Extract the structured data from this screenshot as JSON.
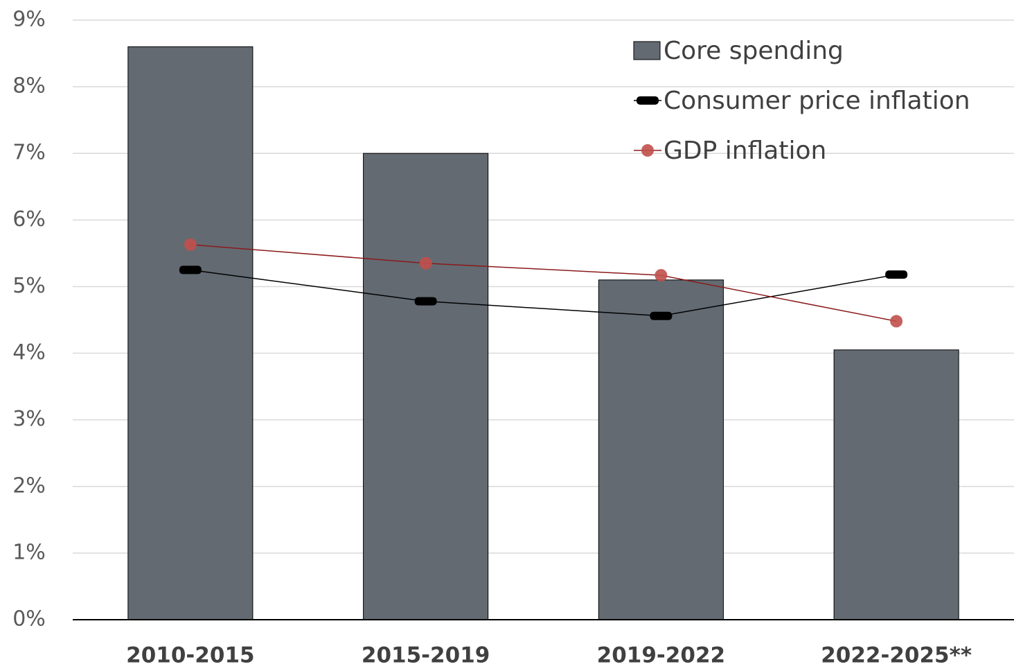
{
  "chart_data": {
    "type": "bar",
    "categories": [
      "2010-2015",
      "2015-2019",
      "2019-2022",
      "2022-2025**"
    ],
    "series": [
      {
        "name": "Core spending",
        "type": "bar",
        "color": "#636a72",
        "values": [
          8.6,
          7.0,
          5.1,
          4.05
        ]
      },
      {
        "name": "Consumer price inflation",
        "type": "line",
        "marker": "dash",
        "color": "#000000",
        "values": [
          5.25,
          4.78,
          4.56,
          5.18
        ]
      },
      {
        "name": "GDP inflation",
        "type": "line",
        "marker": "circle",
        "color": "#c0504d",
        "values": [
          5.63,
          5.35,
          5.17,
          4.48
        ]
      }
    ],
    "ylim": [
      0,
      9
    ],
    "yticks": [
      {
        "value": 0,
        "label": "0%"
      },
      {
        "value": 1,
        "label": "1%"
      },
      {
        "value": 2,
        "label": "2%"
      },
      {
        "value": 3,
        "label": "3%"
      },
      {
        "value": 4,
        "label": "4%"
      },
      {
        "value": 5,
        "label": "5%"
      },
      {
        "value": 6,
        "label": "6%"
      },
      {
        "value": 7,
        "label": "7%"
      },
      {
        "value": 8,
        "label": "8%"
      },
      {
        "value": 9,
        "label": "9%"
      }
    ],
    "grid": true,
    "legend": "top-right"
  }
}
